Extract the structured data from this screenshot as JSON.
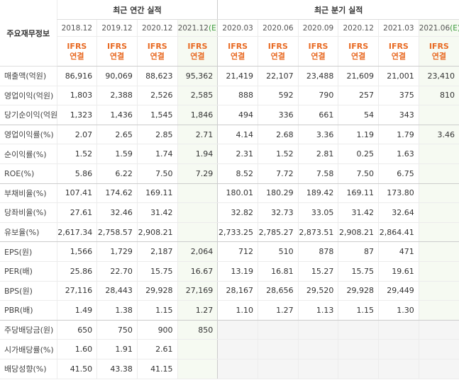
{
  "table": {
    "corner": "주요재무정보",
    "groups": [
      {
        "label": "최근 연간 실적",
        "span": 4
      },
      {
        "label": "최근 분기 실적",
        "span": 6
      }
    ],
    "columns": [
      {
        "period": "2018.12",
        "basis": "IFRS",
        "scope": "연결"
      },
      {
        "period": "2019.12",
        "basis": "IFRS",
        "scope": "연결"
      },
      {
        "period": "2020.12",
        "basis": "IFRS",
        "scope": "연결"
      },
      {
        "period": "2021.12",
        "estimate": "(E)",
        "basis": "IFRS",
        "scope": "연결"
      },
      {
        "period": "2020.03",
        "basis": "IFRS",
        "scope": "연결"
      },
      {
        "period": "2020.06",
        "basis": "IFRS",
        "scope": "연결"
      },
      {
        "period": "2020.09",
        "basis": "IFRS",
        "scope": "연결"
      },
      {
        "period": "2020.12",
        "basis": "IFRS",
        "scope": "연결"
      },
      {
        "period": "2021.03",
        "basis": "IFRS",
        "scope": "연결"
      },
      {
        "period": "2021.06",
        "estimate": "(E)",
        "basis": "IFRS",
        "scope": "연결"
      }
    ],
    "rows": [
      {
        "label": "매출액(억원)",
        "cells": [
          "86,916",
          "90,069",
          "88,623",
          "95,362",
          "21,419",
          "22,107",
          "23,488",
          "21,609",
          "21,001",
          "23,410"
        ]
      },
      {
        "label": "영업이익(억원)",
        "cells": [
          "1,803",
          "2,388",
          "2,526",
          "2,585",
          "888",
          "592",
          "790",
          "257",
          "375",
          "810"
        ]
      },
      {
        "label": "당기순이익(억원)",
        "cells": [
          "1,323",
          "1,436",
          "1,545",
          "1,846",
          "494",
          "336",
          "661",
          "54",
          "343",
          null
        ]
      },
      {
        "label": "영업이익률(%)",
        "cells": [
          "2.07",
          "2.65",
          "2.85",
          "2.71",
          "4.14",
          "2.68",
          "3.36",
          "1.19",
          "1.79",
          "3.46"
        ]
      },
      {
        "label": "순이익률(%)",
        "cells": [
          "1.52",
          "1.59",
          "1.74",
          "1.94",
          "2.31",
          "1.52",
          "2.81",
          "0.25",
          "1.63",
          null
        ]
      },
      {
        "label": "ROE(%)",
        "cells": [
          "5.86",
          "6.22",
          "7.50",
          "7.29",
          "8.52",
          "7.72",
          "7.58",
          "7.50",
          "6.75",
          null
        ]
      },
      {
        "label": "부채비율(%)",
        "cells": [
          "107.41",
          "174.62",
          "169.11",
          null,
          "180.01",
          "180.29",
          "189.42",
          "169.11",
          "173.80",
          null
        ]
      },
      {
        "label": "당좌비율(%)",
        "cells": [
          "27.61",
          "32.46",
          "31.42",
          null,
          "32.82",
          "32.73",
          "33.05",
          "31.42",
          "32.64",
          null
        ]
      },
      {
        "label": "유보율(%)",
        "cells": [
          "2,617.34",
          "2,758.57",
          "2,908.21",
          null,
          "2,733.25",
          "2,785.27",
          "2,873.51",
          "2,908.21",
          "2,864.41",
          null
        ]
      },
      {
        "label": "EPS(원)",
        "cells": [
          "1,566",
          "1,729",
          "2,187",
          "2,064",
          "712",
          "510",
          "878",
          "87",
          "471",
          null
        ]
      },
      {
        "label": "PER(배)",
        "cells": [
          "25.86",
          "22.70",
          "15.75",
          "16.67",
          "13.19",
          "16.81",
          "15.27",
          "15.75",
          "19.61",
          null
        ]
      },
      {
        "label": "BPS(원)",
        "cells": [
          "27,116",
          "28,443",
          "29,928",
          "27,169",
          "28,167",
          "28,656",
          "29,520",
          "29,928",
          "29,449",
          null
        ]
      },
      {
        "label": "PBR(배)",
        "cells": [
          "1.49",
          "1.38",
          "1.15",
          "1.27",
          "1.10",
          "1.27",
          "1.13",
          "1.15",
          "1.30",
          null
        ]
      },
      {
        "label": "주당배당금(원)",
        "cells": [
          "650",
          "750",
          "900",
          "850",
          null,
          null,
          null,
          null,
          null,
          null
        ]
      },
      {
        "label": "시가배당률(%)",
        "cells": [
          "1.60",
          "1.91",
          "2.61",
          null,
          null,
          null,
          null,
          null,
          null,
          null
        ]
      },
      {
        "label": "배당성향(%)",
        "cells": [
          "41.50",
          "43.38",
          "41.15",
          null,
          null,
          null,
          null,
          null,
          null,
          null
        ]
      }
    ]
  }
}
